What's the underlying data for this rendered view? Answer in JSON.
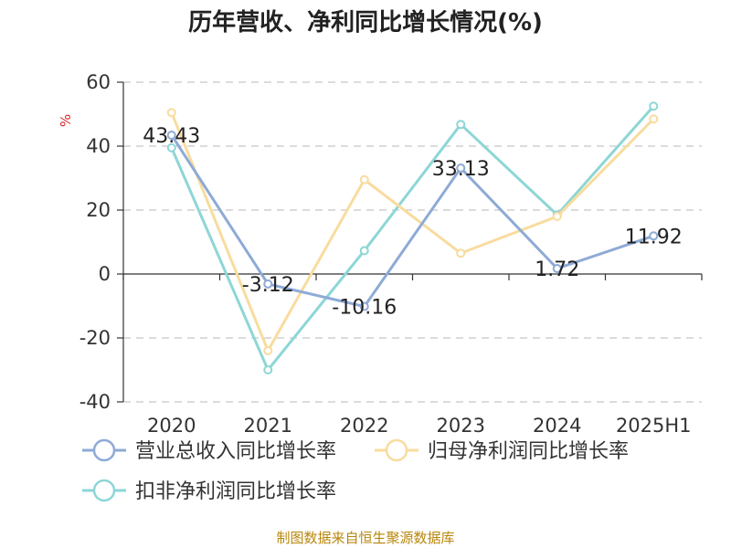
{
  "chart_data": {
    "type": "line",
    "title": "历年营收、净利同比增长情况(%)",
    "ylabel": "%",
    "xlabel": "",
    "categories": [
      "2020",
      "2021",
      "2022",
      "2023",
      "2024",
      "2025H1"
    ],
    "ylim": [
      -40,
      60
    ],
    "yticks": [
      60,
      40,
      20,
      0,
      -20,
      -40
    ],
    "ytick_labels": [
      "60",
      "40",
      "20",
      "0",
      "-20",
      "-40"
    ],
    "grid": true,
    "legend_position": "bottom",
    "series": [
      {
        "name": "营业总收入同比增长率",
        "color": "#8eaad6",
        "values": [
          43.43,
          -3.12,
          -10.16,
          33.13,
          1.72,
          11.92
        ],
        "labels": [
          "43.43",
          "-3.12",
          "-10.16",
          "33.13",
          "1.72",
          "11.92"
        ]
      },
      {
        "name": "归母净利润同比增长率",
        "color": "#f8dc9e",
        "values": [
          50.5,
          -24.0,
          29.5,
          6.5,
          18.0,
          48.5
        ]
      },
      {
        "name": "扣非净利润同比增长率",
        "color": "#8ed6d6",
        "values": [
          39.5,
          -30.0,
          7.3,
          46.8,
          18.5,
          52.5
        ]
      }
    ],
    "source": "制图数据来自恒生聚源数据库"
  }
}
